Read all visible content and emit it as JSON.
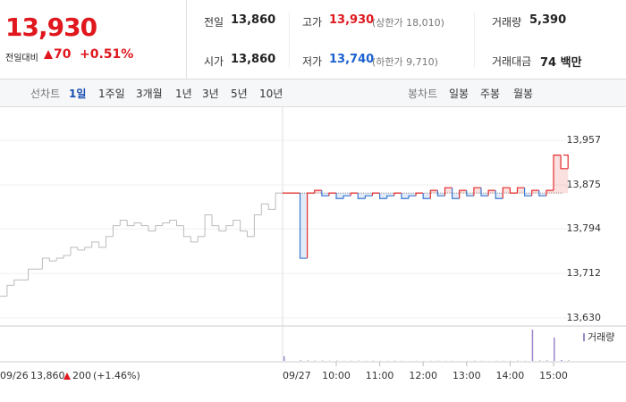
{
  "header": {
    "price": "13,930",
    "change_label": "전일대비",
    "change": "70",
    "change_rate": "+0.51%",
    "stats": [
      {
        "label": "전일",
        "value": "13,860"
      },
      {
        "label": "고가",
        "value": "13,930",
        "note": "(상한가 18,010)"
      },
      {
        "label": "거래량",
        "value": "5,390"
      },
      {
        "label": "시가",
        "value": "13,860"
      },
      {
        "label": "저가",
        "value": "13,740",
        "note": "(하한가 9,710)"
      },
      {
        "label": "거래대금",
        "value": "74 백만"
      }
    ]
  },
  "tabs": {
    "line_label": "선차트",
    "line": [
      "1일",
      "1주일",
      "3개월",
      "1년",
      "3년",
      "5년",
      "10년"
    ],
    "candle_label": "봉차트",
    "candle": [
      "일봉",
      "주봉",
      "월봉"
    ]
  },
  "chart_data": {
    "type": "line",
    "ylim": [
      13615,
      14010
    ],
    "yticks": [
      {
        "value": 13957,
        "label": "13,957"
      },
      {
        "value": 13875,
        "label": "13,875"
      },
      {
        "value": 13794,
        "label": "13,794"
      },
      {
        "value": 13712,
        "label": "13,712"
      },
      {
        "value": 13630,
        "label": "13,630"
      }
    ],
    "grid": true,
    "reference": 13860,
    "previous": {
      "name": "09/26",
      "close": "13,860",
      "change": "200",
      "rate": "(+1.46%)",
      "color": "#bbbbbb",
      "values": [
        13670,
        13690,
        13700,
        13700,
        13720,
        13720,
        13740,
        13735,
        13740,
        13745,
        13760,
        13755,
        13760,
        13770,
        13760,
        13780,
        13800,
        13810,
        13800,
        13805,
        13800,
        13790,
        13800,
        13805,
        13810,
        13800,
        13780,
        13770,
        13780,
        13820,
        13800,
        13790,
        13800,
        13810,
        13790,
        13780,
        13820,
        13840,
        13830,
        13860
      ]
    },
    "today": {
      "name": "09/27",
      "up_color": "#e52c2c",
      "down_color": "#3b78d0",
      "x": [
        "09:00",
        "09:10",
        "09:20",
        "09:30",
        "09:40",
        "09:50",
        "10:00",
        "10:10",
        "10:20",
        "10:30",
        "10:40",
        "10:50",
        "11:00",
        "11:10",
        "11:20",
        "11:30",
        "11:40",
        "11:50",
        "12:00",
        "12:10",
        "12:20",
        "12:30",
        "12:40",
        "12:50",
        "13:00",
        "13:10",
        "13:20",
        "13:30",
        "13:40",
        "13:50",
        "14:00",
        "14:10",
        "14:20",
        "14:30",
        "14:40",
        "14:50",
        "15:00",
        "15:10",
        "15:20"
      ],
      "values": [
        13860,
        13740,
        13860,
        13865,
        13855,
        13860,
        13850,
        13855,
        13860,
        13850,
        13855,
        13860,
        13850,
        13855,
        13860,
        13850,
        13855,
        13860,
        13850,
        13865,
        13855,
        13870,
        13850,
        13865,
        13855,
        13870,
        13855,
        13865,
        13850,
        13870,
        13860,
        13870,
        13855,
        13865,
        13855,
        13865,
        13930,
        13905,
        13930
      ]
    },
    "xticks": [
      "10:00",
      "11:00",
      "12:00",
      "13:00",
      "14:00",
      "15:00"
    ],
    "volume": {
      "name": "거래량",
      "color": "#9b87c9",
      "values": [
        300,
        40,
        30,
        20,
        25,
        15,
        20,
        10,
        15,
        20,
        10,
        15,
        10,
        10,
        15,
        10,
        5,
        10,
        5,
        10,
        15,
        10,
        10,
        5,
        10,
        15,
        10,
        5,
        10,
        15,
        10,
        20,
        10,
        2000,
        30,
        40,
        1500,
        60,
        30
      ]
    }
  }
}
